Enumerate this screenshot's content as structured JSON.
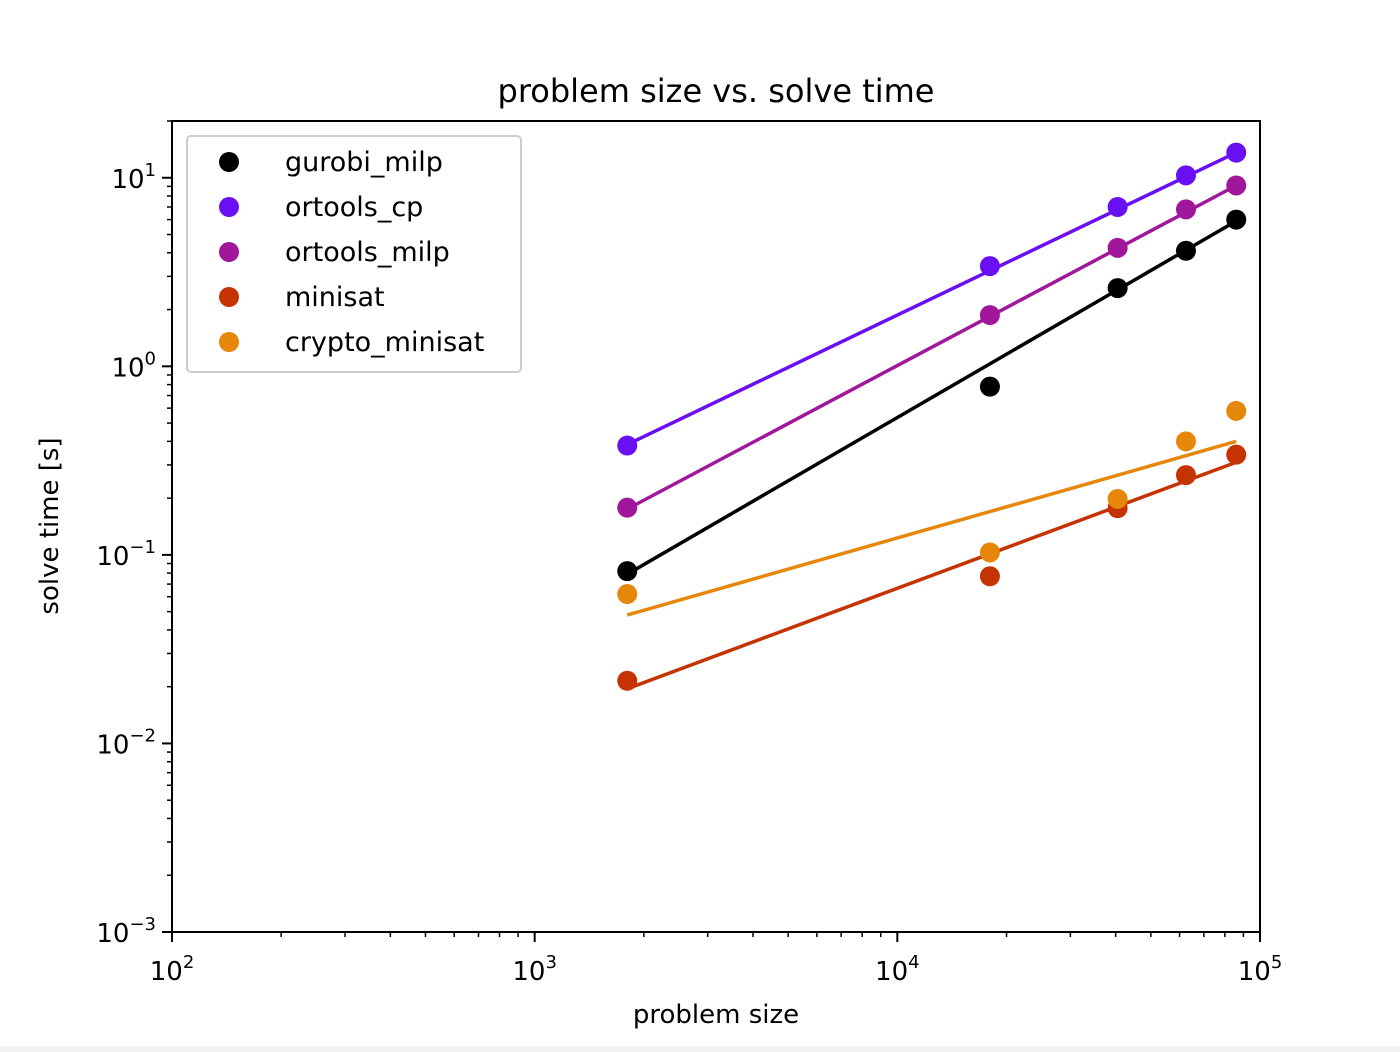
{
  "chart_data": {
    "type": "scatter",
    "title": "problem size vs. solve time",
    "xlabel": "problem size",
    "ylabel": "solve time [s]",
    "xscale": "log",
    "yscale": "log",
    "xlim": [
      100,
      100000
    ],
    "ylim": [
      0.001,
      20
    ],
    "x_ticks": [
      {
        "value": 100,
        "base": "10",
        "exp": "2"
      },
      {
        "value": 1000,
        "base": "10",
        "exp": "3"
      },
      {
        "value": 10000,
        "base": "10",
        "exp": "4"
      },
      {
        "value": 100000,
        "base": "10",
        "exp": "5"
      }
    ],
    "y_ticks": [
      {
        "value": 0.001,
        "base": "10",
        "exp": "−3"
      },
      {
        "value": 0.01,
        "base": "10",
        "exp": "−2"
      },
      {
        "value": 0.1,
        "base": "10",
        "exp": "−1"
      },
      {
        "value": 1,
        "base": "10",
        "exp": "0"
      },
      {
        "value": 10,
        "base": "10",
        "exp": "1"
      }
    ],
    "grid": false,
    "legend_position": "top-left",
    "x": [
      1800,
      18000,
      40500,
      62500,
      86000
    ],
    "series": [
      {
        "name": "gurobi_milp",
        "color": "#000000",
        "values": [
          0.082,
          0.78,
          2.6,
          4.1,
          6.0
        ],
        "fit": {
          "x": [
            1800,
            86000
          ],
          "y": [
            0.079,
            5.9
          ]
        }
      },
      {
        "name": "ortools_cp",
        "color": "#6a0ff2",
        "values": [
          0.38,
          3.4,
          7.0,
          10.3,
          13.6
        ],
        "fit": {
          "x": [
            1800,
            86000
          ],
          "y": [
            0.385,
            13.6
          ]
        }
      },
      {
        "name": "ortools_milp",
        "color": "#a0179c",
        "values": [
          0.178,
          1.87,
          4.25,
          6.8,
          9.1
        ],
        "fit": {
          "x": [
            1800,
            86000
          ],
          "y": [
            0.175,
            9.1
          ]
        }
      },
      {
        "name": "minisat",
        "color": "#c53303",
        "values": [
          0.0215,
          0.077,
          0.177,
          0.265,
          0.34
        ],
        "fit": {
          "x": [
            1800,
            86000
          ],
          "y": [
            0.0195,
            0.31
          ]
        }
      },
      {
        "name": "crypto_minisat",
        "color": "#e6860a",
        "values": [
          0.062,
          0.103,
          0.198,
          0.4,
          0.58
        ],
        "fit": {
          "x": [
            1800,
            86000
          ],
          "y": [
            0.048,
            0.4
          ]
        }
      }
    ]
  }
}
